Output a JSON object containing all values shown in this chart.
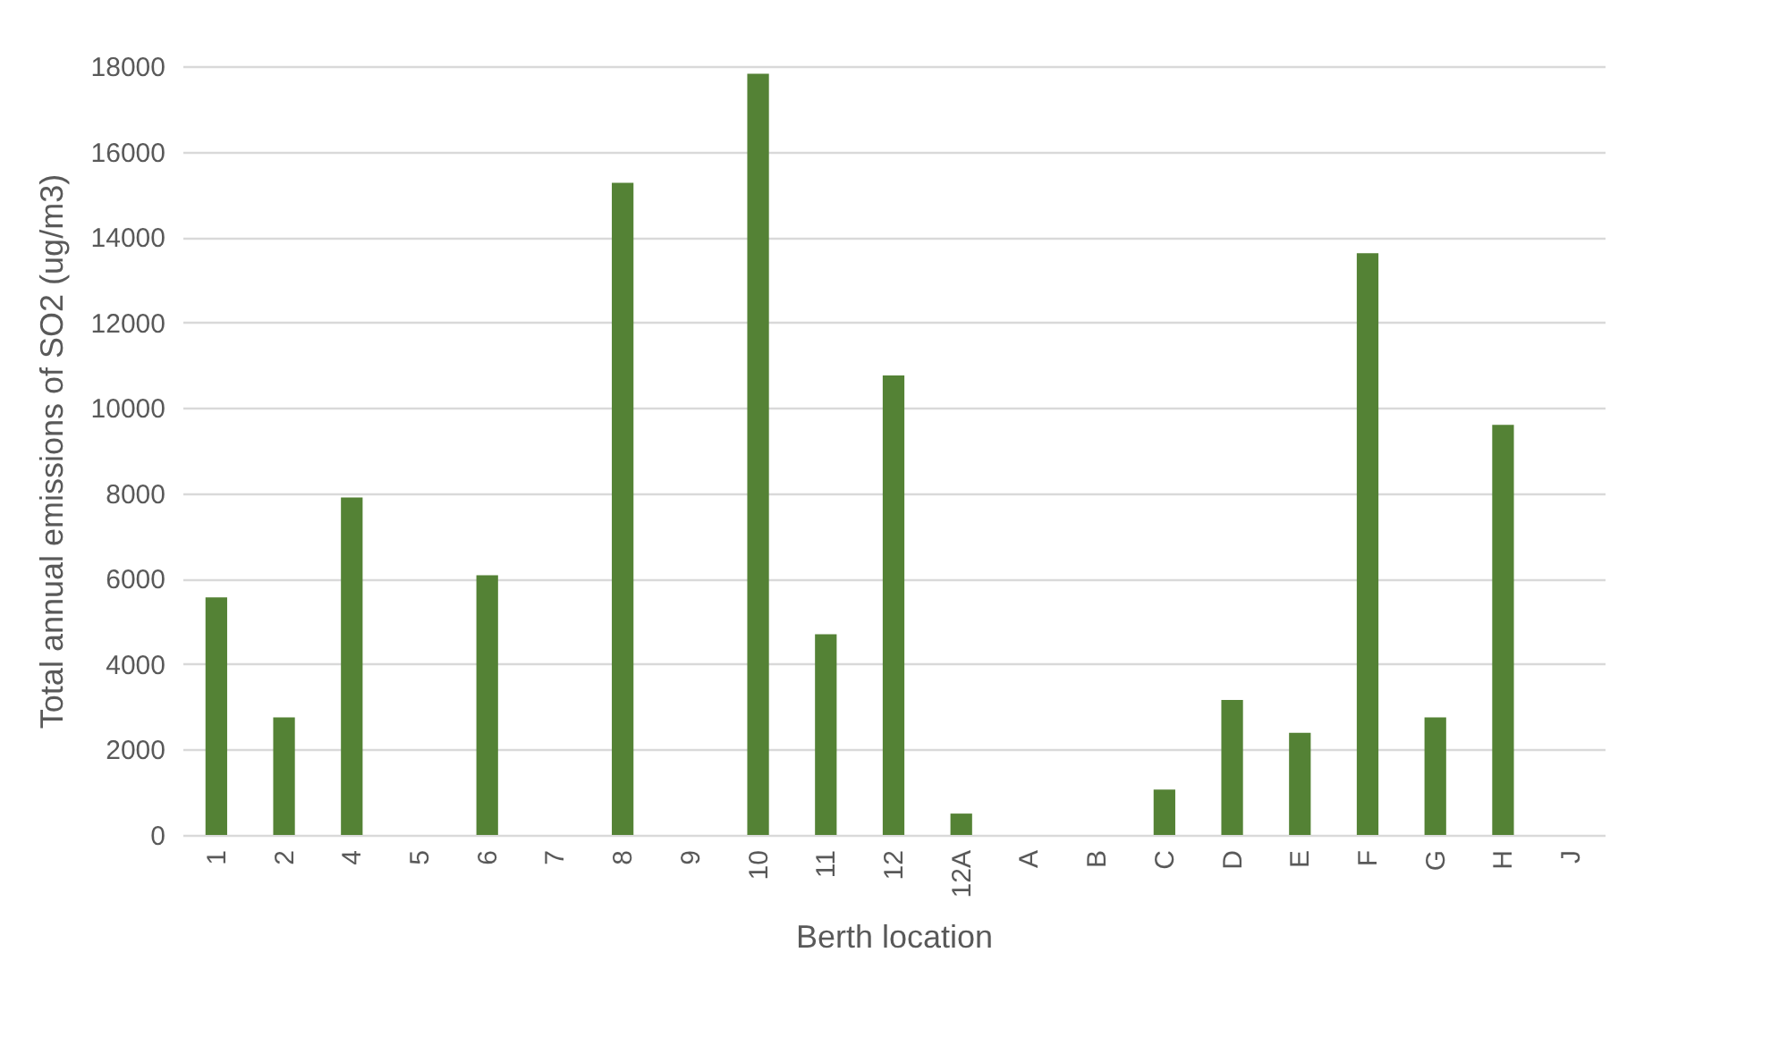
{
  "chart_data": {
    "type": "bar",
    "xlabel": "Berth location",
    "ylabel": "Total annual emissions of SO2 (ug/m3)",
    "categories": [
      "1",
      "2",
      "4",
      "5",
      "6",
      "7",
      "8",
      "9",
      "10",
      "11",
      "12",
      "12A",
      "A",
      "B",
      "C",
      "D",
      "E",
      "F",
      "G",
      "H",
      "J"
    ],
    "values": [
      5560,
      2750,
      7900,
      0,
      6080,
      0,
      15270,
      0,
      17820,
      4700,
      10760,
      500,
      0,
      0,
      1060,
      3160,
      2390,
      13620,
      2750,
      9600,
      0
    ],
    "color": "#548235",
    "ylim": [
      0,
      18000
    ],
    "yticks": [
      0,
      2000,
      4000,
      6000,
      8000,
      10000,
      12000,
      14000,
      16000,
      18000
    ],
    "grid": "y"
  }
}
